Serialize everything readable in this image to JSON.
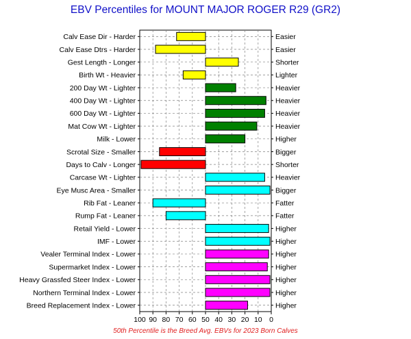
{
  "chart_data": {
    "type": "bar",
    "title": "EBV Percentiles for MOUNT MAJOR ROGER R29 (GR2)",
    "footnote": "50th Percentile is the Breed Avg. EBVs for 2023 Born Calves",
    "xlim": [
      100,
      0
    ],
    "baseline": 50,
    "x_ticks": [
      "100",
      "90",
      "80",
      "70",
      "60",
      "50",
      "40",
      "30",
      "20",
      "10",
      "0"
    ],
    "grid": true,
    "colors": {
      "yellow": "#ffff00",
      "green": "#008000",
      "red": "#ff0000",
      "cyan": "#00ffff",
      "magenta": "#ff00ff",
      "title": "#1010c8",
      "footnote": "#e02020"
    },
    "rows": [
      {
        "label": "Calv Ease Dir - Harder",
        "right_label": "Easier",
        "value": 72,
        "color": "yellow"
      },
      {
        "label": "Calv Ease Dtrs - Harder",
        "right_label": "Easier",
        "value": 88,
        "color": "yellow"
      },
      {
        "label": "Gest Length - Longer",
        "right_label": "Shorter",
        "value": 25,
        "color": "yellow"
      },
      {
        "label": "Birth Wt - Heavier",
        "right_label": "Lighter",
        "value": 67,
        "color": "yellow"
      },
      {
        "label": "200 Day Wt - Lighter",
        "right_label": "Heavier",
        "value": 27,
        "color": "green"
      },
      {
        "label": "400 Day Wt - Lighter",
        "right_label": "Heavier",
        "value": 4,
        "color": "green"
      },
      {
        "label": "600 Day Wt - Lighter",
        "right_label": "Heavier",
        "value": 5,
        "color": "green"
      },
      {
        "label": "Mat Cow Wt - Lighter",
        "right_label": "Heavier",
        "value": 11,
        "color": "green"
      },
      {
        "label": "Milk - Lower",
        "right_label": "Higher",
        "value": 20,
        "color": "green"
      },
      {
        "label": "Scrotal Size - Smaller",
        "right_label": "Bigger",
        "value": 85,
        "color": "red"
      },
      {
        "label": "Days to Calv - Longer",
        "right_label": "Shorter",
        "value": 99,
        "color": "red"
      },
      {
        "label": "Carcase Wt - Lighter",
        "right_label": "Heavier",
        "value": 5,
        "color": "cyan"
      },
      {
        "label": "Eye Musc Area - Smaller",
        "right_label": "Bigger",
        "value": 1,
        "color": "cyan"
      },
      {
        "label": "Rib Fat - Leaner",
        "right_label": "Fatter",
        "value": 90,
        "color": "cyan"
      },
      {
        "label": "Rump Fat - Leaner",
        "right_label": "Fatter",
        "value": 80,
        "color": "cyan"
      },
      {
        "label": "Retail Yield - Lower",
        "right_label": "Higher",
        "value": 2,
        "color": "cyan"
      },
      {
        "label": "IMF - Lower",
        "right_label": "Higher",
        "value": 1,
        "color": "cyan"
      },
      {
        "label": "Vealer Terminal Index - Lower",
        "right_label": "Higher",
        "value": 2,
        "color": "magenta"
      },
      {
        "label": "Supermarket Index - Lower",
        "right_label": "Higher",
        "value": 3,
        "color": "magenta"
      },
      {
        "label": "Heavy Grassfed Steer Index - Lower",
        "right_label": "Higher",
        "value": 1,
        "color": "magenta"
      },
      {
        "label": "Northern Terminal Index - Lower",
        "right_label": "Higher",
        "value": 1,
        "color": "magenta"
      },
      {
        "label": "Breed Replacement Index - Lower",
        "right_label": "Higher",
        "value": 18,
        "color": "magenta"
      }
    ]
  }
}
